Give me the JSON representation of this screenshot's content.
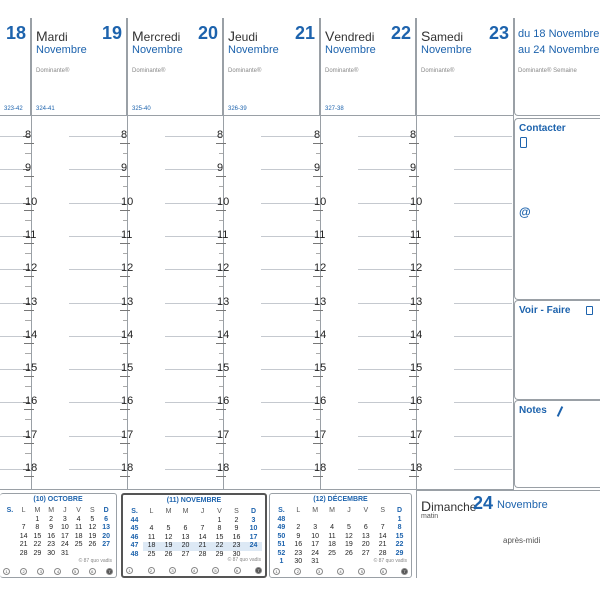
{
  "days": [
    {
      "num": "18",
      "initial": "",
      "rest": "",
      "month": "",
      "dominante": "",
      "code": "323-42"
    },
    {
      "num": "19",
      "initial": "M",
      "rest": "ardi",
      "month": "Novembre",
      "dominante": "Dominante®",
      "code": "324-41"
    },
    {
      "num": "20",
      "initial": "M",
      "rest": "ercredi",
      "month": "Novembre",
      "dominante": "Dominante®",
      "code": "325-40"
    },
    {
      "num": "21",
      "initial": "J",
      "rest": "eudi",
      "month": "Novembre",
      "dominante": "Dominante®",
      "code": "326-39"
    },
    {
      "num": "22",
      "initial": "V",
      "rest": "endredi",
      "month": "Novembre",
      "dominante": "Dominante®",
      "code": "327-38"
    },
    {
      "num": "23",
      "initial": "S",
      "rest": "amedi",
      "month": "Novembre",
      "dominante": "Dominante®",
      "code": ""
    }
  ],
  "week_range": {
    "line1": "du 18 Novembre",
    "line2": "au 24 Novembre",
    "dominante": "Dominante® Semaine"
  },
  "hours": [
    "8",
    "9",
    "10",
    "11",
    "12",
    "13",
    "14",
    "15",
    "16",
    "17",
    "18"
  ],
  "side": {
    "contacter": "Contacter",
    "at": "@",
    "voir_faire": "Voir - Faire",
    "notes": "Notes"
  },
  "sunday": {
    "name_initial": "D",
    "name_rest": "imanche",
    "num": "24",
    "month": "Novembre",
    "morning": "matin",
    "afternoon": "après-midi"
  },
  "minicals": [
    {
      "title": "(10) OCTOBRE",
      "header": [
        "S.",
        "L",
        "M",
        "M",
        "J",
        "V",
        "S",
        "D"
      ],
      "rows": [
        [
          "",
          "",
          "1",
          "2",
          "3",
          "4",
          "5",
          "6"
        ],
        [
          "",
          "7",
          "8",
          "9",
          "10",
          "11",
          "12",
          "13"
        ],
        [
          "",
          "14",
          "15",
          "16",
          "17",
          "18",
          "19",
          "20"
        ],
        [
          "",
          "21",
          "22",
          "23",
          "24",
          "25",
          "26",
          "27"
        ],
        [
          "",
          "28",
          "29",
          "30",
          "31",
          "",
          "",
          ""
        ]
      ],
      "footer": "© 87 quo vadis",
      "circles": [
        "1",
        "2",
        "3",
        "4",
        "5",
        "6",
        "7"
      ],
      "current": false
    },
    {
      "title": "(11) NOVEMBRE",
      "header": [
        "S.",
        "L",
        "M",
        "M",
        "J",
        "V",
        "S",
        "D"
      ],
      "rows": [
        [
          "44",
          "",
          "",
          "",
          "",
          "1",
          "2",
          "3"
        ],
        [
          "45",
          "4",
          "5",
          "6",
          "7",
          "8",
          "9",
          "10"
        ],
        [
          "46",
          "11",
          "12",
          "13",
          "14",
          "15",
          "16",
          "17"
        ],
        [
          "47",
          "18",
          "19",
          "20",
          "21",
          "22",
          "23",
          "24"
        ],
        [
          "48",
          "25",
          "26",
          "27",
          "28",
          "29",
          "30",
          ""
        ]
      ],
      "footer": "© 87 quo vadis",
      "circles": [
        "1",
        "2",
        "3",
        "4",
        "5",
        "6",
        "7"
      ],
      "current": true,
      "highlight_row": 3
    },
    {
      "title": "(12) DÉCEMBRE",
      "header": [
        "S.",
        "L",
        "M",
        "M",
        "J",
        "V",
        "S",
        "D"
      ],
      "rows": [
        [
          "48",
          "",
          "",
          "",
          "",
          "",
          "",
          "1"
        ],
        [
          "49",
          "2",
          "3",
          "4",
          "5",
          "6",
          "7",
          "8"
        ],
        [
          "50",
          "9",
          "10",
          "11",
          "12",
          "13",
          "14",
          "15"
        ],
        [
          "51",
          "16",
          "17",
          "18",
          "19",
          "20",
          "21",
          "22"
        ],
        [
          "52",
          "23",
          "24",
          "25",
          "26",
          "27",
          "28",
          "29"
        ],
        [
          "1",
          "30",
          "31",
          "",
          "",
          "",
          "",
          ""
        ]
      ],
      "footer": "© 87 quo vadis",
      "circles": [
        "1",
        "2",
        "3",
        "4",
        "5",
        "6",
        "7"
      ],
      "current": false
    }
  ],
  "colors": {
    "accent": "#1d63ad",
    "rule": "#9aa0a6"
  }
}
